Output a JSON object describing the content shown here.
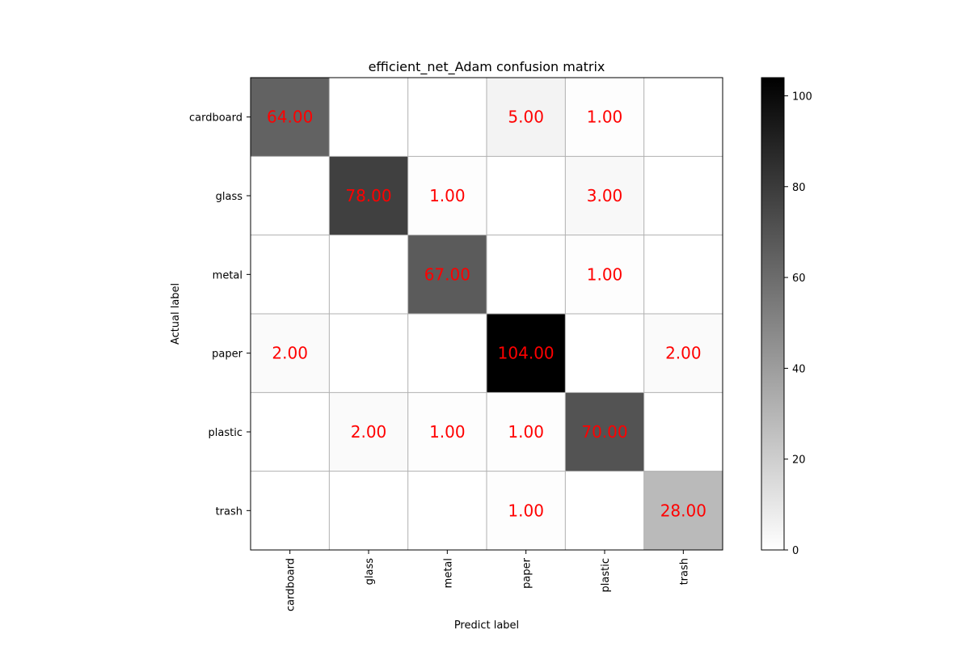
{
  "chart_data": {
    "type": "heatmap",
    "title": "efficient_net_Adam confusion matrix",
    "xlabel": "Predict label",
    "ylabel": "Actual label",
    "x_categories": [
      "cardboard",
      "glass",
      "metal",
      "paper",
      "plastic",
      "trash"
    ],
    "y_categories": [
      "cardboard",
      "glass",
      "metal",
      "paper",
      "plastic",
      "trash"
    ],
    "values": [
      [
        64,
        0,
        0,
        5,
        1,
        0
      ],
      [
        0,
        78,
        1,
        0,
        3,
        0
      ],
      [
        0,
        0,
        67,
        0,
        1,
        0
      ],
      [
        2,
        0,
        0,
        104,
        0,
        2
      ],
      [
        0,
        2,
        1,
        1,
        70,
        0
      ],
      [
        0,
        0,
        0,
        1,
        0,
        28
      ]
    ],
    "cell_labels": [
      [
        "64.00",
        "",
        "",
        "5.00",
        "1.00",
        ""
      ],
      [
        "",
        "78.00",
        "1.00",
        "",
        "3.00",
        ""
      ],
      [
        "",
        "",
        "67.00",
        "",
        "1.00",
        ""
      ],
      [
        "2.00",
        "",
        "",
        "104.00",
        "",
        "2.00"
      ],
      [
        "",
        "2.00",
        "1.00",
        "1.00",
        "70.00",
        ""
      ],
      [
        "",
        "",
        "",
        "1.00",
        "",
        "28.00"
      ]
    ],
    "colormap": "greys",
    "value_range": [
      0,
      104
    ],
    "colorbar_ticks": [
      0,
      20,
      40,
      60,
      80,
      100
    ],
    "colorbar_tick_labels": [
      "0",
      "20",
      "40",
      "60",
      "80",
      "100"
    ],
    "annotation_color": "#ff0000",
    "grid": true
  }
}
